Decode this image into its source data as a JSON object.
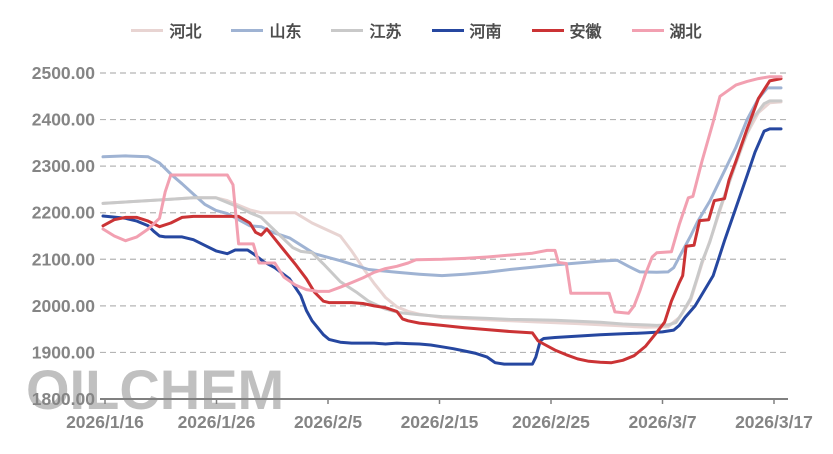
{
  "watermark": "OILCHEM",
  "legend": {
    "items": [
      {
        "label": "河北",
        "color": "#e8d4d2"
      },
      {
        "label": "山东",
        "color": "#9fb3d3"
      },
      {
        "label": "江苏",
        "color": "#c9c9c9"
      },
      {
        "label": "河南",
        "color": "#2647a0"
      },
      {
        "label": "安徽",
        "color": "#cb3335"
      },
      {
        "label": "湖北",
        "color": "#f2a0b1"
      }
    ]
  },
  "chart_data": {
    "type": "line",
    "title": "",
    "xlabel": "",
    "ylabel": "",
    "grid": "dashed-horizontal",
    "legend_position": "top-center",
    "x_axis": {
      "labels": [
        "2026/1/16",
        "2026/1/26",
        "2026/2/5",
        "2026/2/15",
        "2026/2/25",
        "2026/3/7",
        "2026/3/17"
      ],
      "days_span": 60
    },
    "y_axis": {
      "min": 1800,
      "max": 2500,
      "step": 100,
      "labels": [
        "2500.00",
        "2400.00",
        "2300.00",
        "2200.00",
        "2100.00",
        "2000.00",
        "1900.00",
        "1800.00"
      ]
    },
    "series": [
      {
        "name": "河北",
        "color": "#e8d4d2",
        "points": [
          [
            0,
            2220
          ],
          [
            2,
            2223
          ],
          [
            4,
            2226
          ],
          [
            6,
            2229
          ],
          [
            8,
            2232
          ],
          [
            10,
            2232
          ],
          [
            11,
            2226
          ],
          [
            13,
            2206
          ],
          [
            14,
            2200
          ],
          [
            17,
            2200
          ],
          [
            18.5,
            2178
          ],
          [
            21,
            2150
          ],
          [
            22,
            2118
          ],
          [
            23,
            2082
          ],
          [
            24,
            2048
          ],
          [
            25,
            2018
          ],
          [
            26,
            1998
          ],
          [
            27,
            1988
          ],
          [
            28,
            1982
          ],
          [
            30,
            1975
          ],
          [
            34,
            1970
          ],
          [
            38,
            1966
          ],
          [
            42,
            1962
          ],
          [
            46,
            1957
          ],
          [
            48,
            1954
          ],
          [
            50,
            1955
          ],
          [
            51,
            1975
          ],
          [
            52,
            2012
          ],
          [
            53,
            2090
          ],
          [
            54,
            2160
          ],
          [
            55,
            2235
          ],
          [
            56,
            2305
          ],
          [
            57,
            2370
          ],
          [
            58,
            2415
          ],
          [
            59,
            2436
          ],
          [
            60,
            2438
          ]
        ]
      },
      {
        "name": "山东",
        "color": "#9fb3d3",
        "points": [
          [
            0,
            2320
          ],
          [
            2,
            2322
          ],
          [
            4,
            2320
          ],
          [
            5,
            2307
          ],
          [
            5.5,
            2295
          ],
          [
            6,
            2283
          ],
          [
            7,
            2262
          ],
          [
            8,
            2240
          ],
          [
            9,
            2218
          ],
          [
            10,
            2205
          ],
          [
            11,
            2198
          ],
          [
            12,
            2185
          ],
          [
            13,
            2172
          ],
          [
            14,
            2170
          ],
          [
            15,
            2158
          ],
          [
            16.5,
            2146
          ],
          [
            18.7,
            2112
          ],
          [
            21,
            2097
          ],
          [
            23.5,
            2078
          ],
          [
            26,
            2072
          ],
          [
            28,
            2068
          ],
          [
            30,
            2065
          ],
          [
            32,
            2068
          ],
          [
            34,
            2072
          ],
          [
            36,
            2078
          ],
          [
            38,
            2083
          ],
          [
            40,
            2088
          ],
          [
            42,
            2092
          ],
          [
            44,
            2096
          ],
          [
            45.5,
            2098
          ],
          [
            46.5,
            2085
          ],
          [
            47.5,
            2073
          ],
          [
            49,
            2072
          ],
          [
            50,
            2073
          ],
          [
            50.5,
            2082
          ],
          [
            51,
            2105
          ],
          [
            52,
            2150
          ],
          [
            52.6,
            2180
          ],
          [
            53.7,
            2225
          ],
          [
            55,
            2290
          ],
          [
            56,
            2340
          ],
          [
            57,
            2400
          ],
          [
            58,
            2445
          ],
          [
            58.8,
            2468
          ],
          [
            60,
            2468
          ]
        ]
      },
      {
        "name": "江苏",
        "color": "#c9c9c9",
        "points": [
          [
            0,
            2220
          ],
          [
            2,
            2223
          ],
          [
            4,
            2226
          ],
          [
            6,
            2229
          ],
          [
            8,
            2232
          ],
          [
            10,
            2232
          ],
          [
            11,
            2222
          ],
          [
            12,
            2212
          ],
          [
            13,
            2200
          ],
          [
            14,
            2190
          ],
          [
            15.5,
            2155
          ],
          [
            16.8,
            2125
          ],
          [
            17.5,
            2117
          ],
          [
            18.5,
            2114
          ],
          [
            19.5,
            2090
          ],
          [
            21,
            2052
          ],
          [
            22.5,
            2028
          ],
          [
            23.5,
            2010
          ],
          [
            25,
            1993
          ],
          [
            26.3,
            1985
          ],
          [
            28,
            1981
          ],
          [
            30,
            1977
          ],
          [
            32,
            1975
          ],
          [
            34,
            1973
          ],
          [
            36,
            1971
          ],
          [
            38,
            1970
          ],
          [
            40,
            1969
          ],
          [
            42,
            1967
          ],
          [
            44,
            1965
          ],
          [
            46,
            1961
          ],
          [
            47,
            1960
          ],
          [
            48,
            1959
          ],
          [
            49,
            1958
          ],
          [
            50,
            1959
          ],
          [
            50.7,
            1964
          ],
          [
            51.3,
            1986
          ],
          [
            52,
            2016
          ],
          [
            52.6,
            2062
          ],
          [
            53,
            2094
          ],
          [
            53.7,
            2137
          ],
          [
            54.5,
            2202
          ],
          [
            55.5,
            2272
          ],
          [
            56.5,
            2342
          ],
          [
            57.5,
            2402
          ],
          [
            58.5,
            2434
          ],
          [
            59,
            2440
          ],
          [
            60,
            2440
          ]
        ]
      },
      {
        "name": "河南",
        "color": "#2647a0",
        "points": [
          [
            0,
            2193
          ],
          [
            2,
            2188
          ],
          [
            3,
            2182
          ],
          [
            4,
            2172
          ],
          [
            4.5,
            2160
          ],
          [
            5,
            2150
          ],
          [
            5.5,
            2148
          ],
          [
            7,
            2148
          ],
          [
            8,
            2142
          ],
          [
            9,
            2130
          ],
          [
            10,
            2118
          ],
          [
            11,
            2112
          ],
          [
            11.7,
            2120
          ],
          [
            12.8,
            2120
          ],
          [
            13.3,
            2112
          ],
          [
            14.2,
            2095
          ],
          [
            15.2,
            2082
          ],
          [
            16.5,
            2058
          ],
          [
            17.5,
            2022
          ],
          [
            18,
            1990
          ],
          [
            18.5,
            1968
          ],
          [
            19.5,
            1938
          ],
          [
            20,
            1928
          ],
          [
            21,
            1922
          ],
          [
            22,
            1920
          ],
          [
            24,
            1920
          ],
          [
            25,
            1918
          ],
          [
            26,
            1920
          ],
          [
            27,
            1919
          ],
          [
            28,
            1918
          ],
          [
            29,
            1916
          ],
          [
            30,
            1912
          ],
          [
            31,
            1908
          ],
          [
            32,
            1903
          ],
          [
            33,
            1898
          ],
          [
            34,
            1890
          ],
          [
            34.7,
            1878
          ],
          [
            35.5,
            1875
          ],
          [
            38,
            1875
          ],
          [
            38.3,
            1890
          ],
          [
            38.7,
            1925
          ],
          [
            39,
            1930
          ],
          [
            40,
            1932
          ],
          [
            42,
            1935
          ],
          [
            44,
            1938
          ],
          [
            46,
            1940
          ],
          [
            48,
            1942
          ],
          [
            49.5,
            1944
          ],
          [
            50.5,
            1948
          ],
          [
            51,
            1958
          ],
          [
            51.5,
            1975
          ],
          [
            52.4,
            2000
          ],
          [
            54,
            2065
          ],
          [
            55,
            2140
          ],
          [
            56,
            2210
          ],
          [
            57,
            2280
          ],
          [
            57.7,
            2330
          ],
          [
            58.5,
            2375
          ],
          [
            59,
            2380
          ],
          [
            60,
            2380
          ]
        ]
      },
      {
        "name": "安徽",
        "color": "#cb3335",
        "points": [
          [
            0,
            2172
          ],
          [
            1,
            2185
          ],
          [
            2,
            2190
          ],
          [
            3,
            2190
          ],
          [
            4,
            2182
          ],
          [
            5,
            2170
          ],
          [
            6,
            2178
          ],
          [
            7,
            2190
          ],
          [
            8,
            2192
          ],
          [
            12,
            2192
          ],
          [
            13,
            2178
          ],
          [
            13.5,
            2158
          ],
          [
            14,
            2152
          ],
          [
            14.5,
            2165
          ],
          [
            15,
            2150
          ],
          [
            16,
            2120
          ],
          [
            17,
            2090
          ],
          [
            18,
            2058
          ],
          [
            18.7,
            2030
          ],
          [
            19.5,
            2010
          ],
          [
            20,
            2007
          ],
          [
            22,
            2007
          ],
          [
            23,
            2005
          ],
          [
            24,
            2000
          ],
          [
            25,
            1996
          ],
          [
            26,
            1988
          ],
          [
            26.5,
            1972
          ],
          [
            27,
            1968
          ],
          [
            28,
            1963
          ],
          [
            30,
            1958
          ],
          [
            32,
            1953
          ],
          [
            34,
            1949
          ],
          [
            36,
            1945
          ],
          [
            38,
            1942
          ],
          [
            38.5,
            1925
          ],
          [
            39,
            1918
          ],
          [
            40,
            1905
          ],
          [
            41,
            1895
          ],
          [
            42,
            1886
          ],
          [
            43,
            1881
          ],
          [
            44,
            1879
          ],
          [
            45,
            1878
          ],
          [
            46,
            1883
          ],
          [
            47,
            1893
          ],
          [
            48,
            1913
          ],
          [
            49,
            1943
          ],
          [
            49.7,
            1965
          ],
          [
            50.3,
            2010
          ],
          [
            51,
            2050
          ],
          [
            51.3,
            2065
          ],
          [
            51.6,
            2128
          ],
          [
            52.3,
            2130
          ],
          [
            52.8,
            2183
          ],
          [
            53.6,
            2185
          ],
          [
            54.1,
            2226
          ],
          [
            55,
            2230
          ],
          [
            55.4,
            2270
          ],
          [
            56,
            2310
          ],
          [
            57,
            2380
          ],
          [
            58,
            2445
          ],
          [
            59,
            2483
          ],
          [
            60,
            2488
          ]
        ]
      },
      {
        "name": "湖北",
        "color": "#f2a0b1",
        "points": [
          [
            0,
            2165
          ],
          [
            1,
            2150
          ],
          [
            2,
            2140
          ],
          [
            3,
            2148
          ],
          [
            4,
            2165
          ],
          [
            5,
            2188
          ],
          [
            5.5,
            2245
          ],
          [
            6,
            2281
          ],
          [
            11,
            2281
          ],
          [
            11.5,
            2260
          ],
          [
            12,
            2133
          ],
          [
            13.3,
            2133
          ],
          [
            13.8,
            2092
          ],
          [
            15.2,
            2092
          ],
          [
            16,
            2062
          ],
          [
            17,
            2045
          ],
          [
            18,
            2035
          ],
          [
            19,
            2031
          ],
          [
            20,
            2031
          ],
          [
            21,
            2040
          ],
          [
            22,
            2050
          ],
          [
            23,
            2060
          ],
          [
            24,
            2072
          ],
          [
            25,
            2080
          ],
          [
            26,
            2085
          ],
          [
            27,
            2092
          ],
          [
            27.7,
            2099
          ],
          [
            30,
            2100
          ],
          [
            32,
            2102
          ],
          [
            34,
            2105
          ],
          [
            36,
            2109
          ],
          [
            38,
            2113
          ],
          [
            39.3,
            2119
          ],
          [
            40,
            2119
          ],
          [
            40.3,
            2093
          ],
          [
            41,
            2091
          ],
          [
            41.4,
            2027
          ],
          [
            44.8,
            2027
          ],
          [
            45.3,
            1987
          ],
          [
            46.5,
            1984
          ],
          [
            47,
            2000
          ],
          [
            47.5,
            2032
          ],
          [
            48,
            2068
          ],
          [
            48.6,
            2105
          ],
          [
            49,
            2114
          ],
          [
            50.3,
            2116
          ],
          [
            51,
            2175
          ],
          [
            51.8,
            2232
          ],
          [
            52.2,
            2235
          ],
          [
            53,
            2310
          ],
          [
            54,
            2395
          ],
          [
            54.6,
            2450
          ],
          [
            55.3,
            2462
          ],
          [
            56,
            2474
          ],
          [
            57,
            2482
          ],
          [
            58,
            2488
          ],
          [
            59,
            2492
          ],
          [
            60,
            2492
          ]
        ]
      }
    ]
  },
  "colors": {
    "background": "#ffffff",
    "gridline": "#b5b5b5",
    "axis_line": "#808080",
    "axis_text": "#858585",
    "legend_text": "#4d4d4d",
    "watermark": "#c0c0c0"
  }
}
